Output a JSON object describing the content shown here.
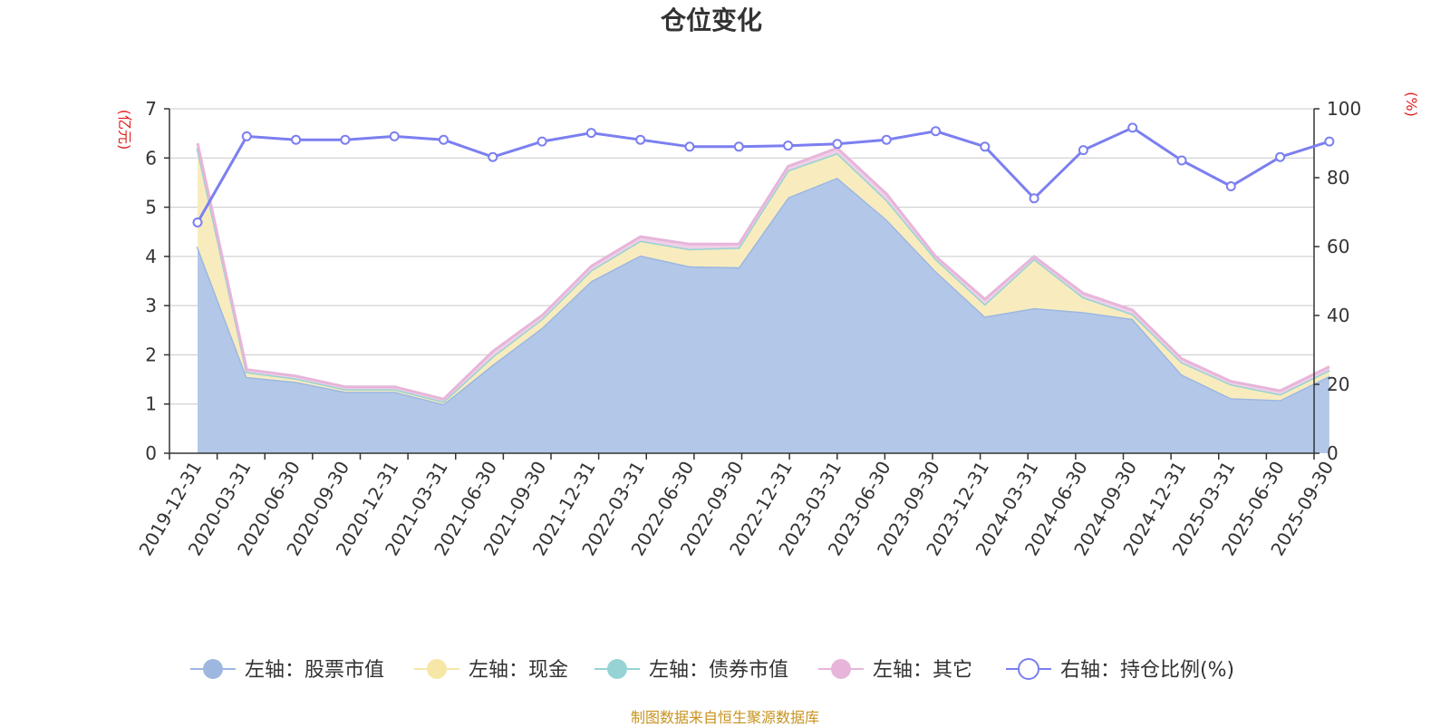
{
  "chart_data": {
    "type": "area",
    "title": "仓位变化",
    "left_axis_label": "(亿元)",
    "right_axis_label": "(%)",
    "categories": [
      "2019-12-31",
      "2020-03-31",
      "2020-06-30",
      "2020-09-30",
      "2020-12-31",
      "2021-03-31",
      "2021-06-30",
      "2021-09-30",
      "2021-12-31",
      "2022-03-31",
      "2022-06-30",
      "2022-09-30",
      "2022-12-31",
      "2023-03-31",
      "2023-06-30",
      "2023-09-30",
      "2023-12-31",
      "2024-03-31",
      "2024-06-30",
      "2024-09-30",
      "2024-12-31",
      "2025-03-31",
      "2025-06-30",
      "2025-09-30"
    ],
    "left_ylim": [
      0,
      7
    ],
    "left_ticks": [
      0,
      1,
      2,
      3,
      4,
      5,
      6,
      7
    ],
    "right_ylim": [
      0,
      100
    ],
    "right_ticks": [
      0,
      20,
      40,
      60,
      80,
      100
    ],
    "series": [
      {
        "name": "左轴：股票市值",
        "axis": "left",
        "color": "#9db7e0",
        "fill": "#b3c8e8",
        "values": [
          4.2,
          1.55,
          1.45,
          1.25,
          1.25,
          1.0,
          1.8,
          2.55,
          3.5,
          4.02,
          3.8,
          3.78,
          5.2,
          5.6,
          4.75,
          3.7,
          2.78,
          2.95,
          2.87,
          2.73,
          1.6,
          1.12,
          1.08,
          1.57
        ]
      },
      {
        "name": "左轴：现金",
        "axis": "left",
        "color": "#f6e7a6",
        "fill": "#f8ecbf",
        "values": [
          2.0,
          0.1,
          0.07,
          0.05,
          0.05,
          0.05,
          0.17,
          0.18,
          0.22,
          0.3,
          0.35,
          0.4,
          0.55,
          0.5,
          0.4,
          0.25,
          0.25,
          1.0,
          0.3,
          0.1,
          0.25,
          0.28,
          0.12,
          0.12
        ]
      },
      {
        "name": "左轴：债券市值",
        "axis": "left",
        "color": "#96d3d4",
        "fill": "#bde4e4",
        "values": [
          0,
          0,
          0,
          0,
          0,
          0,
          0,
          0,
          0,
          0,
          0,
          0,
          0,
          0,
          0,
          0,
          0,
          0,
          0,
          0,
          0,
          0,
          0,
          0
        ]
      },
      {
        "name": "左轴：其它",
        "axis": "left",
        "color": "#e7b5da",
        "fill": "#efd0e6",
        "values": [
          0.1,
          0.05,
          0.05,
          0.05,
          0.05,
          0.05,
          0.1,
          0.07,
          0.08,
          0.08,
          0.1,
          0.07,
          0.08,
          0.1,
          0.12,
          0.05,
          0.1,
          0.05,
          0.08,
          0.08,
          0.07,
          0.06,
          0.07,
          0.07
        ]
      },
      {
        "name": "右轴：持仓比例(%)",
        "axis": "right",
        "color": "#7b7ff0",
        "values": [
          67,
          92,
          91,
          91,
          92,
          91,
          86,
          90.5,
          93,
          91,
          89,
          89,
          89.3,
          89.8,
          91,
          93.5,
          89,
          74,
          88,
          94.5,
          85,
          77.5,
          86,
          90.5
        ]
      }
    ],
    "legend_position": "bottom",
    "grid": true
  },
  "footer": {
    "source": "制图数据来自恒生聚源数据库"
  }
}
